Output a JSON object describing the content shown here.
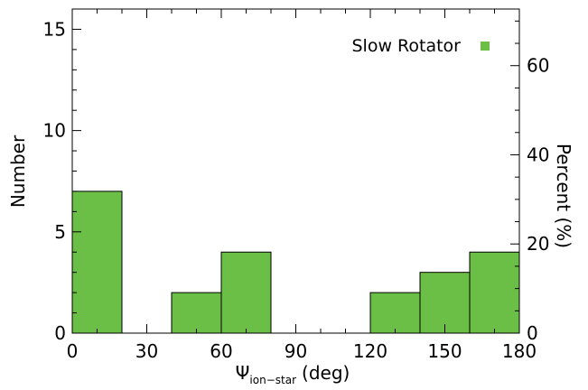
{
  "chart_data": {
    "type": "bar",
    "bar_style": "histogram",
    "bin_edges": [
      0,
      20,
      40,
      60,
      80,
      100,
      120,
      140,
      160,
      180
    ],
    "values": [
      7,
      0,
      2,
      4,
      0,
      0,
      2,
      3,
      4
    ],
    "xlim": [
      0,
      180
    ],
    "ylim": [
      0,
      16
    ],
    "right_ylim": [
      0,
      72.7
    ],
    "x_ticks": [
      "0",
      "30",
      "60",
      "90",
      "120",
      "150",
      "180"
    ],
    "y_ticks": [
      "0",
      "5",
      "10",
      "15"
    ],
    "right_y_ticks": [
      "0",
      "20",
      "40",
      "60"
    ],
    "xlabel": {
      "symbol": "Ψ",
      "subscript": "ion−star",
      "unit": "(deg)"
    },
    "ylabel": "Number",
    "right_ylabel": "Percent (%)",
    "legend": {
      "label": "Slow Rotator",
      "position": "top-right"
    },
    "series": [
      {
        "name": "Slow Rotator",
        "color": "#6cbf46"
      }
    ],
    "grid": false
  }
}
